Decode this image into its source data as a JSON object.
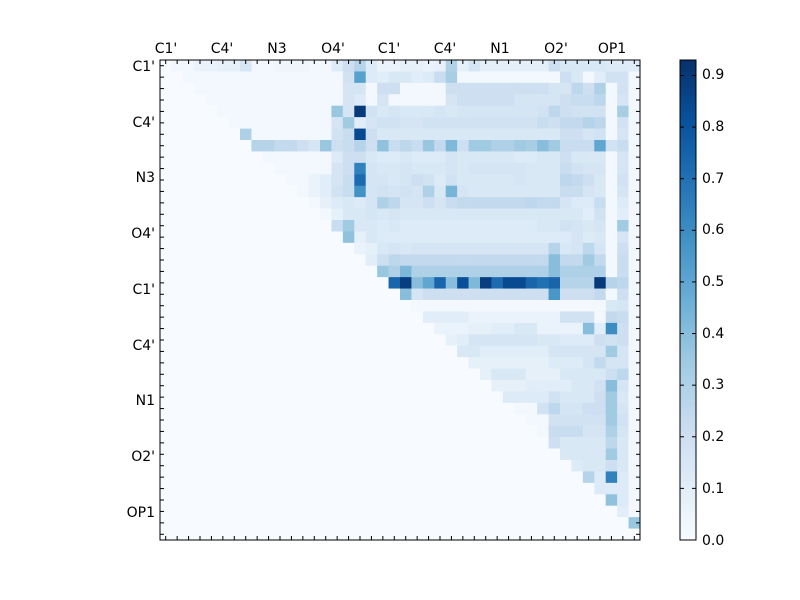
{
  "chart_data": {
    "type": "heatmap",
    "n": 42,
    "x_tick_labels": [
      "C1'",
      "C4'",
      "N3",
      "O4'",
      "C1'",
      "C4'",
      "N1",
      "O2'",
      "OP1"
    ],
    "y_tick_labels": [
      "C1'",
      "C4'",
      "N3",
      "O4'",
      "C1'",
      "C4'",
      "N1",
      "O2'",
      "OP1"
    ],
    "tick_every": 5,
    "colormap": "Blues",
    "vmin": 0.0,
    "vmax": 0.93,
    "colorbar_ticks": [
      "0.0",
      "0.1",
      "0.2",
      "0.3",
      "0.4",
      "0.5",
      "0.6",
      "0.7",
      "0.8",
      "0.9"
    ],
    "row_default": [
      0.0,
      0.06,
      0.06,
      0.08,
      0.1,
      0.12,
      0.16,
      0.06,
      0.06,
      0.06,
      0.08,
      0.08,
      0.08,
      0.05,
      0.06,
      0.08,
      0.22,
      0.3,
      0.1,
      0.22,
      0.18,
      0.16,
      0.16,
      0.12,
      0.14,
      0.2,
      0.16,
      0.32,
      0.18,
      0.18,
      0.18,
      0.18,
      0.18,
      0.18,
      0.18,
      0.18,
      0.22,
      0.22,
      0.22,
      0.22,
      0.22,
      0.22
    ],
    "rows": [
      {
        "row": 0,
        "values": {
          "3": 0.06,
          "4": 0.06,
          "5": 0.08,
          "7": 0.16,
          "15": 0.12,
          "16": 0.2,
          "17": 0.28,
          "18": 0.12,
          "19": 0.06,
          "20": 0.06,
          "21": 0.08,
          "22": 0.08,
          "25": 0.3,
          "34": 0.2,
          "35": 0.14,
          "36": 0.14,
          "37": 0.14,
          "38": 0.14,
          "39": 0.12,
          "40": 0.12
        }
      },
      {
        "row": 1,
        "values": {
          "16": 0.18,
          "17": 0.52,
          "18": 0.12,
          "19": 0.1,
          "20": 0.14,
          "21": 0.14,
          "22": 0.1,
          "23": 0.12,
          "24": 0.22,
          "25": 0.32,
          "35": 0.2,
          "36": 0.14,
          "38": 0.1,
          "39": 0.18,
          "40": 0.18
        }
      },
      {
        "row": 2,
        "values": {
          "16": 0.16,
          "17": 0.16,
          "19": 0.2,
          "20": 0.2,
          "25": 0.2,
          "26": 0.2,
          "27": 0.2,
          "28": 0.2,
          "29": 0.2,
          "30": 0.2,
          "31": 0.2,
          "32": 0.2,
          "33": 0.2,
          "34": 0.16,
          "35": 0.16,
          "36": 0.26,
          "37": 0.2,
          "38": 0.3,
          "40": 0.18
        }
      },
      {
        "row": 3,
        "values": {
          "16": 0.16,
          "17": 0.12,
          "19": 0.16,
          "25": 0.16,
          "26": 0.2,
          "27": 0.2,
          "28": 0.2,
          "29": 0.2,
          "30": 0.2,
          "31": 0.16,
          "32": 0.16,
          "33": 0.16,
          "34": 0.16,
          "35": 0.2,
          "36": 0.22,
          "37": 0.22,
          "38": 0.26,
          "40": 0.16
        }
      },
      {
        "row": 4,
        "values": {
          "15": 0.36,
          "16": 0.16,
          "17": 0.9,
          "18": 0.18,
          "19": 0.14,
          "20": 0.16,
          "21": 0.14,
          "22": 0.14,
          "23": 0.14,
          "24": 0.16,
          "25": 0.14,
          "26": 0.16,
          "27": 0.16,
          "28": 0.16,
          "29": 0.16,
          "30": 0.16,
          "31": 0.16,
          "32": 0.16,
          "33": 0.18,
          "34": 0.26,
          "35": 0.2,
          "36": 0.18,
          "37": 0.18,
          "38": 0.18,
          "40": 0.32
        }
      },
      {
        "row": 5,
        "values": {
          "15": 0.16,
          "16": 0.34,
          "17": 0.1,
          "18": 0.16,
          "19": 0.18,
          "20": 0.18,
          "21": 0.16,
          "22": 0.16,
          "23": 0.18,
          "24": 0.18,
          "25": 0.18,
          "26": 0.18,
          "27": 0.18,
          "28": 0.18,
          "29": 0.18,
          "30": 0.18,
          "31": 0.18,
          "32": 0.18,
          "33": 0.22,
          "34": 0.2,
          "35": 0.24,
          "36": 0.24,
          "37": 0.28,
          "38": 0.26,
          "40": 0.18
        }
      },
      {
        "row": 6,
        "values": {
          "7": 0.3,
          "15": 0.18,
          "16": 0.22,
          "17": 0.84,
          "18": 0.2,
          "19": 0.14,
          "20": 0.14,
          "21": 0.14,
          "22": 0.14,
          "23": 0.14,
          "24": 0.14,
          "25": 0.14,
          "26": 0.14,
          "27": 0.14,
          "28": 0.14,
          "29": 0.14,
          "30": 0.14,
          "31": 0.14,
          "32": 0.14,
          "33": 0.14,
          "34": 0.14,
          "35": 0.2,
          "36": 0.2,
          "37": 0.16,
          "38": 0.18,
          "40": 0.16
        }
      },
      {
        "row": 7,
        "values": {
          "8": 0.28,
          "9": 0.28,
          "10": 0.24,
          "11": 0.24,
          "12": 0.2,
          "13": 0.16,
          "14": 0.36,
          "15": 0.2,
          "16": 0.22,
          "17": 0.28,
          "18": 0.2,
          "19": 0.38,
          "20": 0.22,
          "21": 0.26,
          "22": 0.22,
          "23": 0.36,
          "24": 0.24,
          "25": 0.42,
          "26": 0.2,
          "27": 0.34,
          "28": 0.34,
          "29": 0.3,
          "30": 0.3,
          "31": 0.34,
          "32": 0.32,
          "33": 0.4,
          "34": 0.34,
          "35": 0.22,
          "36": 0.22,
          "37": 0.22,
          "38": 0.5,
          "39": 0.18,
          "40": 0.22
        }
      },
      {
        "row": 8,
        "values": {
          "15": 0.12,
          "16": 0.2,
          "17": 0.2,
          "18": 0.14,
          "19": 0.12,
          "20": 0.12,
          "21": 0.14,
          "22": 0.12,
          "23": 0.12,
          "24": 0.12,
          "25": 0.16,
          "26": 0.14,
          "27": 0.14,
          "28": 0.14,
          "29": 0.14,
          "30": 0.14,
          "31": 0.12,
          "32": 0.12,
          "33": 0.14,
          "34": 0.14,
          "35": 0.2,
          "36": 0.14,
          "37": 0.14,
          "38": 0.14,
          "40": 0.16
        }
      },
      {
        "row": 9,
        "values": {
          "15": 0.16,
          "16": 0.2,
          "17": 0.64,
          "18": 0.16,
          "19": 0.14,
          "20": 0.14,
          "21": 0.16,
          "22": 0.14,
          "23": 0.14,
          "24": 0.14,
          "25": 0.16,
          "26": 0.14,
          "27": 0.16,
          "28": 0.16,
          "29": 0.16,
          "30": 0.16,
          "31": 0.16,
          "32": 0.14,
          "33": 0.14,
          "34": 0.14,
          "35": 0.22,
          "36": 0.18,
          "37": 0.16,
          "38": 0.16,
          "40": 0.16
        }
      },
      {
        "row": 10,
        "values": {
          "13": 0.06,
          "14": 0.1,
          "15": 0.16,
          "16": 0.22,
          "17": 0.72,
          "18": 0.16,
          "19": 0.16,
          "20": 0.14,
          "21": 0.16,
          "22": 0.2,
          "23": 0.18,
          "24": 0.12,
          "25": 0.18,
          "26": 0.14,
          "27": 0.14,
          "28": 0.14,
          "29": 0.14,
          "30": 0.14,
          "31": 0.16,
          "32": 0.14,
          "33": 0.14,
          "34": 0.14,
          "35": 0.26,
          "36": 0.24,
          "37": 0.2,
          "38": 0.14,
          "40": 0.18
        }
      },
      {
        "row": 11,
        "values": {
          "13": 0.06,
          "14": 0.1,
          "15": 0.18,
          "16": 0.22,
          "17": 0.58,
          "18": 0.16,
          "19": 0.18,
          "20": 0.16,
          "21": 0.18,
          "22": 0.16,
          "23": 0.3,
          "24": 0.14,
          "25": 0.44,
          "26": 0.16,
          "27": 0.14,
          "28": 0.14,
          "29": 0.14,
          "30": 0.14,
          "31": 0.14,
          "32": 0.14,
          "33": 0.14,
          "34": 0.14,
          "35": 0.22,
          "36": 0.22,
          "37": 0.16,
          "38": 0.14,
          "40": 0.16
        }
      },
      {
        "row": 12,
        "values": {
          "14": 0.08,
          "15": 0.12,
          "16": 0.14,
          "17": 0.12,
          "18": 0.16,
          "19": 0.3,
          "20": 0.26,
          "21": 0.16,
          "22": 0.16,
          "23": 0.2,
          "24": 0.16,
          "25": 0.22,
          "26": 0.24,
          "27": 0.24,
          "28": 0.24,
          "29": 0.24,
          "30": 0.24,
          "31": 0.24,
          "32": 0.26,
          "33": 0.24,
          "34": 0.24,
          "35": 0.16,
          "36": 0.12,
          "37": 0.12,
          "38": 0.22,
          "40": 0.12
        }
      },
      {
        "row": 13,
        "values": {
          "15": 0.08,
          "16": 0.14,
          "17": 0.14,
          "18": 0.16,
          "19": 0.14,
          "20": 0.16,
          "21": 0.14,
          "22": 0.14,
          "23": 0.14,
          "24": 0.14,
          "25": 0.14,
          "26": 0.14,
          "27": 0.14,
          "28": 0.14,
          "29": 0.14,
          "30": 0.14,
          "31": 0.14,
          "32": 0.14,
          "33": 0.14,
          "34": 0.14,
          "35": 0.14,
          "36": 0.14,
          "37": 0.1,
          "38": 0.18,
          "40": 0.1
        }
      },
      {
        "row": 14,
        "values": {
          "15": 0.22,
          "16": 0.34,
          "17": 0.14,
          "18": 0.14,
          "19": 0.12,
          "20": 0.14,
          "21": 0.12,
          "22": 0.12,
          "23": 0.12,
          "24": 0.12,
          "25": 0.12,
          "26": 0.12,
          "27": 0.12,
          "28": 0.12,
          "29": 0.12,
          "30": 0.12,
          "31": 0.12,
          "32": 0.12,
          "33": 0.14,
          "34": 0.14,
          "35": 0.18,
          "36": 0.16,
          "37": 0.14,
          "38": 0.16,
          "40": 0.34
        }
      },
      {
        "row": 15,
        "values": {
          "16": 0.38,
          "17": 0.08,
          "18": 0.14,
          "19": 0.12,
          "20": 0.12,
          "21": 0.12,
          "22": 0.12,
          "23": 0.12,
          "24": 0.12,
          "25": 0.12,
          "26": 0.12,
          "27": 0.12,
          "28": 0.12,
          "29": 0.12,
          "30": 0.12,
          "31": 0.12,
          "32": 0.12,
          "33": 0.12,
          "34": 0.12,
          "35": 0.12,
          "36": 0.16,
          "37": 0.12,
          "38": 0.14,
          "40": 0.16
        }
      },
      {
        "row": 16,
        "values": {
          "17": 0.06,
          "18": 0.08,
          "19": 0.14,
          "20": 0.16,
          "21": 0.14,
          "22": 0.16,
          "23": 0.16,
          "24": 0.16,
          "25": 0.16,
          "26": 0.16,
          "27": 0.16,
          "28": 0.16,
          "29": 0.16,
          "30": 0.16,
          "31": 0.16,
          "32": 0.16,
          "33": 0.16,
          "34": 0.28,
          "35": 0.14,
          "36": 0.16,
          "37": 0.26,
          "38": 0.16,
          "40": 0.2
        }
      },
      {
        "row": 17,
        "values": {
          "18": 0.1,
          "19": 0.2,
          "20": 0.26,
          "21": 0.24,
          "22": 0.24,
          "23": 0.24,
          "24": 0.24,
          "25": 0.24,
          "26": 0.24,
          "27": 0.24,
          "28": 0.24,
          "29": 0.24,
          "30": 0.24,
          "31": 0.24,
          "32": 0.24,
          "33": 0.24,
          "34": 0.4,
          "35": 0.24,
          "36": 0.24,
          "37": 0.34,
          "38": 0.24,
          "40": 0.22
        }
      },
      {
        "row": 18,
        "values": {
          "19": 0.36,
          "20": 0.3,
          "21": 0.42,
          "22": 0.3,
          "23": 0.3,
          "24": 0.3,
          "25": 0.3,
          "26": 0.3,
          "27": 0.3,
          "28": 0.3,
          "29": 0.3,
          "30": 0.3,
          "31": 0.3,
          "32": 0.3,
          "33": 0.3,
          "34": 0.4,
          "35": 0.3,
          "36": 0.3,
          "37": 0.3,
          "38": 0.3,
          "40": 0.22
        }
      },
      {
        "row": 19,
        "values": {
          "19": 0.3,
          "20": 0.74,
          "21": 0.88,
          "22": 0.4,
          "23": 0.5,
          "24": 0.74,
          "25": 0.4,
          "26": 0.82,
          "27": 0.42,
          "28": 0.88,
          "29": 0.72,
          "30": 0.84,
          "31": 0.84,
          "32": 0.74,
          "33": 0.7,
          "34": 0.74,
          "35": 0.28,
          "36": 0.28,
          "37": 0.28,
          "38": 0.9,
          "39": 0.28,
          "40": 0.26
        }
      },
      {
        "row": 20,
        "values": {
          "19": 0.14,
          "20": 0.26,
          "21": 0.4,
          "22": 0.16,
          "23": 0.2,
          "24": 0.2,
          "25": 0.2,
          "26": 0.2,
          "27": 0.2,
          "28": 0.2,
          "29": 0.2,
          "30": 0.2,
          "31": 0.2,
          "32": 0.2,
          "33": 0.2,
          "34": 0.56,
          "35": 0.2,
          "36": 0.2,
          "37": 0.2,
          "38": 0.24,
          "40": 0.2
        }
      },
      {
        "row": 21,
        "values": {
          "39": 0.14,
          "40": 0.16
        }
      },
      {
        "row": 22,
        "values": {
          "21": 0.14,
          "23": 0.1,
          "24": 0.1,
          "25": 0.1,
          "26": 0.1,
          "27": 0.06,
          "28": 0.06,
          "29": 0.06,
          "30": 0.06,
          "31": 0.06,
          "32": 0.06,
          "33": 0.06,
          "34": 0.06,
          "35": 0.18,
          "36": 0.18,
          "37": 0.18,
          "39": 0.24,
          "40": 0.22
        }
      },
      {
        "row": 23,
        "values": {
          "22": 0.06,
          "23": 0.08,
          "24": 0.06,
          "25": 0.06,
          "26": 0.06,
          "27": 0.08,
          "28": 0.08,
          "29": 0.1,
          "30": 0.1,
          "31": 0.14,
          "32": 0.14,
          "33": 0.06,
          "34": 0.06,
          "35": 0.06,
          "36": 0.06,
          "37": 0.4,
          "38": 0.1,
          "39": 0.6,
          "40": 0.2
        }
      },
      {
        "row": 24,
        "values": {
          "23": 0.1,
          "24": 0.08,
          "25": 0.08,
          "26": 0.1,
          "27": 0.16,
          "28": 0.16,
          "29": 0.16,
          "30": 0.16,
          "31": 0.16,
          "32": 0.16,
          "33": 0.14,
          "34": 0.14,
          "35": 0.12,
          "36": 0.12,
          "37": 0.12,
          "38": 0.2,
          "39": 0.18,
          "40": 0.2
        }
      },
      {
        "row": 25,
        "values": {
          "24": 0.1,
          "25": 0.1,
          "26": 0.14,
          "27": 0.14,
          "28": 0.1,
          "29": 0.1,
          "30": 0.1,
          "31": 0.1,
          "32": 0.1,
          "33": 0.1,
          "34": 0.16,
          "35": 0.16,
          "36": 0.16,
          "37": 0.16,
          "38": 0.16,
          "39": 0.34,
          "40": 0.16
        }
      },
      {
        "row": 26,
        "values": {
          "25": 0.06,
          "26": 0.1,
          "27": 0.08,
          "28": 0.08,
          "29": 0.08,
          "30": 0.08,
          "31": 0.08,
          "32": 0.08,
          "33": 0.08,
          "34": 0.12,
          "35": 0.12,
          "36": 0.12,
          "37": 0.16,
          "38": 0.24,
          "39": 0.16,
          "40": 0.16
        }
      },
      {
        "row": 27,
        "values": {
          "26": 0.06,
          "27": 0.2,
          "28": 0.08,
          "29": 0.14,
          "30": 0.14,
          "31": 0.14,
          "32": 0.08,
          "33": 0.08,
          "34": 0.08,
          "35": 0.14,
          "36": 0.14,
          "37": 0.14,
          "38": 0.14,
          "39": 0.2,
          "40": 0.26
        }
      },
      {
        "row": 28,
        "values": {
          "27": 0.1,
          "28": 0.08,
          "29": 0.08,
          "30": 0.08,
          "31": 0.08,
          "32": 0.1,
          "33": 0.1,
          "34": 0.1,
          "35": 0.1,
          "36": 0.14,
          "37": 0.14,
          "38": 0.18,
          "39": 0.4,
          "40": 0.16
        }
      },
      {
        "row": 29,
        "values": {
          "28": 0.22,
          "29": 0.2,
          "30": 0.12,
          "31": 0.12,
          "32": 0.12,
          "33": 0.12,
          "34": 0.18,
          "35": 0.14,
          "36": 0.14,
          "37": 0.14,
          "38": 0.2,
          "39": 0.34,
          "40": 0.14
        }
      },
      {
        "row": 30,
        "values": {
          "33": 0.18,
          "34": 0.26,
          "35": 0.16,
          "36": 0.16,
          "37": 0.2,
          "38": 0.2,
          "39": 0.34,
          "40": 0.16
        }
      },
      {
        "row": 31,
        "values": {
          "34": 0.18,
          "35": 0.18,
          "36": 0.18,
          "37": 0.18,
          "38": 0.18,
          "39": 0.34,
          "40": 0.18
        }
      },
      {
        "row": 32,
        "values": {
          "34": 0.22,
          "35": 0.22,
          "36": 0.22,
          "37": 0.16,
          "38": 0.16,
          "39": 0.3,
          "40": 0.16
        }
      },
      {
        "row": 33,
        "values": {
          "34": 0.2,
          "35": 0.14,
          "36": 0.14,
          "37": 0.14,
          "38": 0.14,
          "39": 0.26,
          "40": 0.14
        }
      },
      {
        "row": 34,
        "values": {
          "34": 0.14,
          "35": 0.14,
          "36": 0.14,
          "37": 0.14,
          "38": 0.14,
          "39": 0.34,
          "40": 0.14
        }
      },
      {
        "row": 35,
        "values": {
          "35": 0.12,
          "36": 0.12,
          "37": 0.14,
          "38": 0.14,
          "39": 0.2,
          "40": 0.14
        }
      },
      {
        "row": 36,
        "values": {
          "36": 0.1,
          "37": 0.28,
          "38": 0.12,
          "39": 0.64,
          "40": 0.12
        }
      },
      {
        "row": 37,
        "values": {
          "37": 0.1,
          "38": 0.12,
          "39": 0.12,
          "40": 0.12
        }
      },
      {
        "row": 38,
        "values": {
          "38": 0.12,
          "39": 0.38,
          "40": 0.12
        }
      },
      {
        "row": 39,
        "values": {
          "39": 0.1,
          "40": 0.1
        }
      },
      {
        "row": 40,
        "values": {
          "40": 0.34,
          "41": 0.36
        }
      },
      {
        "row": 41,
        "values": {}
      }
    ]
  }
}
